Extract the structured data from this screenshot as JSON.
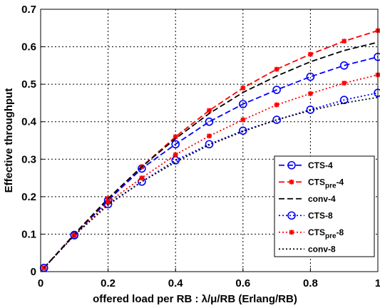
{
  "chart_data": {
    "type": "line",
    "xlabel": "offered load per RB : λ/μ/RB (Erlang/RB)",
    "ylabel": "Effective throughput",
    "xlim": [
      0,
      1
    ],
    "ylim": [
      0,
      0.7
    ],
    "xticks": [
      "0",
      "0.2",
      "0.4",
      "0.6",
      "0.8",
      "1"
    ],
    "yticks": [
      "0",
      "0.1",
      "0.2",
      "0.3",
      "0.4",
      "0.5",
      "0.6",
      "0.7"
    ],
    "grid": true,
    "legend_position": "lower-right",
    "x": [
      0.01,
      0.1,
      0.2,
      0.3,
      0.4,
      0.5,
      0.6,
      0.7,
      0.8,
      0.9,
      1.0
    ],
    "series": [
      {
        "name": "CTS-4",
        "name_main": "CTS-4",
        "name_sub": "",
        "name_tail": "",
        "color": "#0000ff",
        "dash": "dash",
        "marker": "circle",
        "values": [
          0.01,
          0.098,
          0.19,
          0.275,
          0.34,
          0.4,
          0.447,
          0.485,
          0.52,
          0.55,
          0.573
        ]
      },
      {
        "name": "CTS_pre-4",
        "name_main": "CTS",
        "name_sub": "pre",
        "name_tail": "-4",
        "color": "#ff0000",
        "dash": "dash",
        "marker": "star",
        "values": [
          0.01,
          0.1,
          0.195,
          0.28,
          0.36,
          0.43,
          0.49,
          0.54,
          0.58,
          0.615,
          0.643
        ]
      },
      {
        "name": "conv-4",
        "name_main": "conv-4",
        "name_sub": "",
        "name_tail": "",
        "color": "#000000",
        "dash": "dash",
        "marker": "none",
        "values": [
          0.01,
          0.1,
          0.195,
          0.28,
          0.355,
          0.422,
          0.478,
          0.522,
          0.56,
          0.59,
          0.612
        ]
      },
      {
        "name": "CTS-8",
        "name_main": "CTS-8",
        "name_sub": "",
        "name_tail": "",
        "color": "#0000ff",
        "dash": "dot",
        "marker": "circle",
        "values": [
          0.01,
          0.097,
          0.18,
          0.24,
          0.297,
          0.34,
          0.376,
          0.405,
          0.432,
          0.458,
          0.477
        ]
      },
      {
        "name": "CTS_pre-8",
        "name_main": "CTS",
        "name_sub": "pre",
        "name_tail": "-8",
        "color": "#ff0000",
        "dash": "dot",
        "marker": "star",
        "values": [
          0.01,
          0.097,
          0.185,
          0.25,
          0.312,
          0.362,
          0.405,
          0.445,
          0.475,
          0.503,
          0.525
        ]
      },
      {
        "name": "conv-8",
        "name_main": "conv-8",
        "name_sub": "",
        "name_tail": "",
        "color": "#000000",
        "dash": "dot",
        "marker": "none",
        "values": [
          0.01,
          0.097,
          0.178,
          0.24,
          0.292,
          0.338,
          0.374,
          0.405,
          0.43,
          0.45,
          0.465
        ]
      }
    ]
  }
}
